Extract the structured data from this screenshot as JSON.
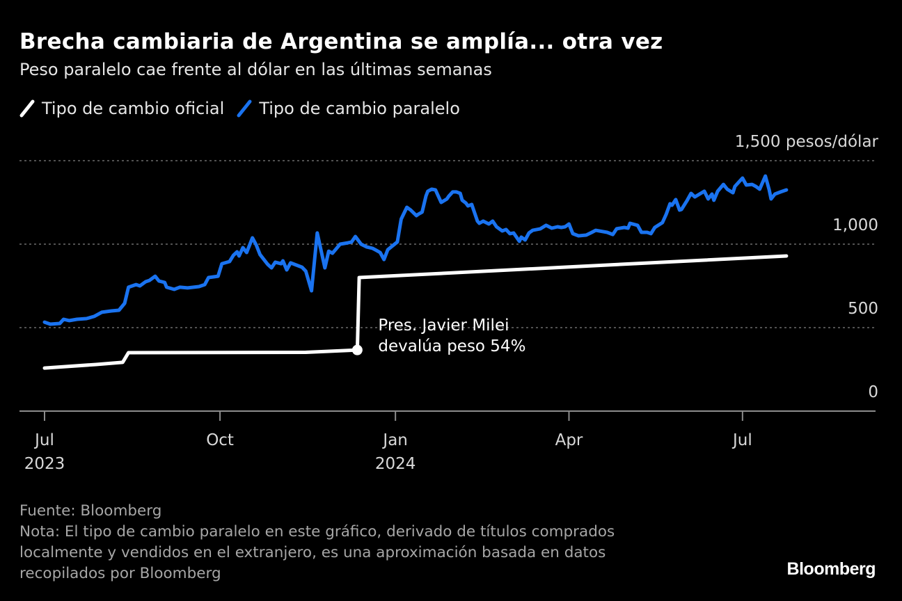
{
  "header": {
    "title": "Brecha cambiaria de Argentina se amplía... otra vez",
    "subtitle": "Peso paralelo cae frente al dólar en las últimas semanas"
  },
  "footer": {
    "source": "Fuente: Bloomberg",
    "note_lines": [
      "Nota: El tipo de cambio paralelo en este gráfico, derivado de títulos comprados",
      "localmente y vendidos en el extranjero, es una aproximación basada en datos",
      "recopilados por Bloomberg"
    ],
    "logo": "Bloomberg"
  },
  "chart_data": {
    "type": "line",
    "title": "Brecha cambiaria de Argentina se amplía... otra vez",
    "subtitle": "Peso paralelo cae frente al dólar en las últimas semanas",
    "ylabel_unit": "pesos/dólar",
    "ylim": [
      0,
      1500
    ],
    "y_ticks": [
      {
        "value": 0,
        "label": "0"
      },
      {
        "value": 500,
        "label": "500"
      },
      {
        "value": 1000,
        "label": "1,000"
      },
      {
        "value": 1500,
        "label": "1,500 pesos/dólar"
      }
    ],
    "xlim": [
      "2023-06-18",
      "2024-09-15"
    ],
    "x_ticks": [
      {
        "date": "2023-07-01",
        "label": "Jul",
        "year": "2023"
      },
      {
        "date": "2023-10-01",
        "label": "Oct",
        "year": ""
      },
      {
        "date": "2024-01-01",
        "label": "Jan",
        "year": "2024"
      },
      {
        "date": "2024-04-01",
        "label": "Apr",
        "year": ""
      },
      {
        "date": "2024-07-01",
        "label": "Jul",
        "year": ""
      }
    ],
    "grid": "horizontal dotted",
    "legend_position": "top-left",
    "series": [
      {
        "name": "Tipo de cambio oficial",
        "color": "#ffffff",
        "points": [
          [
            "2023-07-01",
            258
          ],
          [
            "2023-07-28",
            279
          ],
          [
            "2023-08-11",
            292
          ],
          [
            "2023-08-14",
            350
          ],
          [
            "2023-11-15",
            352
          ],
          [
            "2023-12-12",
            366
          ],
          [
            "2023-12-13",
            800
          ],
          [
            "2024-07-24",
            929
          ]
        ]
      },
      {
        "name": "Tipo de cambio paralelo",
        "color": "#1a73f0",
        "points": [
          [
            "2023-07-01",
            533
          ],
          [
            "2023-07-04",
            521
          ],
          [
            "2023-07-09",
            525
          ],
          [
            "2023-07-11",
            550
          ],
          [
            "2023-07-14",
            542
          ],
          [
            "2023-07-18",
            550
          ],
          [
            "2023-07-23",
            554
          ],
          [
            "2023-07-27",
            567
          ],
          [
            "2023-07-31",
            592
          ],
          [
            "2023-08-05",
            600
          ],
          [
            "2023-08-09",
            604
          ],
          [
            "2023-08-12",
            646
          ],
          [
            "2023-08-14",
            742
          ],
          [
            "2023-08-18",
            758
          ],
          [
            "2023-08-20",
            750
          ],
          [
            "2023-08-23",
            775
          ],
          [
            "2023-08-25",
            783
          ],
          [
            "2023-08-28",
            808
          ],
          [
            "2023-08-30",
            779
          ],
          [
            "2023-09-02",
            771
          ],
          [
            "2023-09-03",
            742
          ],
          [
            "2023-09-07",
            729
          ],
          [
            "2023-09-10",
            742
          ],
          [
            "2023-09-14",
            738
          ],
          [
            "2023-09-20",
            746
          ],
          [
            "2023-09-23",
            758
          ],
          [
            "2023-09-25",
            800
          ],
          [
            "2023-09-30",
            808
          ],
          [
            "2023-10-02",
            883
          ],
          [
            "2023-10-06",
            896
          ],
          [
            "2023-10-08",
            933
          ],
          [
            "2023-10-10",
            954
          ],
          [
            "2023-10-11",
            929
          ],
          [
            "2023-10-13",
            979
          ],
          [
            "2023-10-15",
            950
          ],
          [
            "2023-10-18",
            1038
          ],
          [
            "2023-10-20",
            996
          ],
          [
            "2023-10-22",
            938
          ],
          [
            "2023-10-26",
            879
          ],
          [
            "2023-10-28",
            858
          ],
          [
            "2023-10-30",
            892
          ],
          [
            "2023-11-02",
            883
          ],
          [
            "2023-11-03",
            900
          ],
          [
            "2023-11-05",
            846
          ],
          [
            "2023-11-07",
            888
          ],
          [
            "2023-11-10",
            875
          ],
          [
            "2023-11-13",
            862
          ],
          [
            "2023-11-15",
            838
          ],
          [
            "2023-11-18",
            721
          ],
          [
            "2023-11-21",
            1067
          ],
          [
            "2023-11-25",
            858
          ],
          [
            "2023-11-27",
            958
          ],
          [
            "2023-11-29",
            946
          ],
          [
            "2023-12-03",
            1000
          ],
          [
            "2023-12-07",
            1008
          ],
          [
            "2023-12-09",
            1013
          ],
          [
            "2023-12-11",
            1046
          ],
          [
            "2023-12-14",
            1000
          ],
          [
            "2023-12-17",
            983
          ],
          [
            "2023-12-20",
            975
          ],
          [
            "2023-12-22",
            963
          ],
          [
            "2023-12-24",
            950
          ],
          [
            "2023-12-26",
            908
          ],
          [
            "2023-12-28",
            967
          ],
          [
            "2024-01-01",
            1004
          ],
          [
            "2024-01-02",
            1013
          ],
          [
            "2024-01-04",
            1150
          ],
          [
            "2024-01-07",
            1221
          ],
          [
            "2024-01-09",
            1204
          ],
          [
            "2024-01-12",
            1171
          ],
          [
            "2024-01-13",
            1179
          ],
          [
            "2024-01-15",
            1192
          ],
          [
            "2024-01-17",
            1288
          ],
          [
            "2024-01-18",
            1317
          ],
          [
            "2024-01-20",
            1329
          ],
          [
            "2024-01-22",
            1325
          ],
          [
            "2024-01-23",
            1300
          ],
          [
            "2024-01-25",
            1250
          ],
          [
            "2024-01-28",
            1271
          ],
          [
            "2024-01-29",
            1288
          ],
          [
            "2024-01-31",
            1313
          ],
          [
            "2024-02-02",
            1313
          ],
          [
            "2024-02-04",
            1304
          ],
          [
            "2024-02-05",
            1263
          ],
          [
            "2024-02-07",
            1246
          ],
          [
            "2024-02-08",
            1229
          ],
          [
            "2024-02-10",
            1238
          ],
          [
            "2024-02-13",
            1138
          ],
          [
            "2024-02-14",
            1125
          ],
          [
            "2024-02-16",
            1138
          ],
          [
            "2024-02-19",
            1121
          ],
          [
            "2024-02-21",
            1138
          ],
          [
            "2024-02-23",
            1104
          ],
          [
            "2024-02-26",
            1079
          ],
          [
            "2024-02-28",
            1088
          ],
          [
            "2024-03-01",
            1063
          ],
          [
            "2024-03-03",
            1067
          ],
          [
            "2024-03-06",
            1017
          ],
          [
            "2024-03-07",
            1042
          ],
          [
            "2024-03-09",
            1025
          ],
          [
            "2024-03-11",
            1067
          ],
          [
            "2024-03-13",
            1083
          ],
          [
            "2024-03-17",
            1092
          ],
          [
            "2024-03-20",
            1113
          ],
          [
            "2024-03-23",
            1096
          ],
          [
            "2024-03-26",
            1104
          ],
          [
            "2024-03-28",
            1100
          ],
          [
            "2024-03-30",
            1104
          ],
          [
            "2024-04-01",
            1121
          ],
          [
            "2024-04-03",
            1063
          ],
          [
            "2024-04-06",
            1050
          ],
          [
            "2024-04-10",
            1054
          ],
          [
            "2024-04-13",
            1071
          ],
          [
            "2024-04-15",
            1083
          ],
          [
            "2024-04-21",
            1071
          ],
          [
            "2024-04-24",
            1058
          ],
          [
            "2024-04-26",
            1092
          ],
          [
            "2024-04-30",
            1100
          ],
          [
            "2024-05-02",
            1096
          ],
          [
            "2024-05-03",
            1125
          ],
          [
            "2024-05-07",
            1113
          ],
          [
            "2024-05-09",
            1071
          ],
          [
            "2024-05-12",
            1071
          ],
          [
            "2024-05-14",
            1063
          ],
          [
            "2024-05-16",
            1100
          ],
          [
            "2024-05-20",
            1129
          ],
          [
            "2024-05-22",
            1179
          ],
          [
            "2024-05-24",
            1242
          ],
          [
            "2024-05-25",
            1233
          ],
          [
            "2024-05-27",
            1267
          ],
          [
            "2024-05-29",
            1204
          ],
          [
            "2024-05-30",
            1208
          ],
          [
            "2024-06-02",
            1263
          ],
          [
            "2024-06-04",
            1304
          ],
          [
            "2024-06-06",
            1283
          ],
          [
            "2024-06-11",
            1317
          ],
          [
            "2024-06-13",
            1271
          ],
          [
            "2024-06-15",
            1300
          ],
          [
            "2024-06-16",
            1263
          ],
          [
            "2024-06-18",
            1317
          ],
          [
            "2024-06-21",
            1358
          ],
          [
            "2024-06-23",
            1329
          ],
          [
            "2024-06-26",
            1308
          ],
          [
            "2024-06-27",
            1346
          ],
          [
            "2024-07-01",
            1396
          ],
          [
            "2024-07-03",
            1354
          ],
          [
            "2024-07-06",
            1358
          ],
          [
            "2024-07-08",
            1346
          ],
          [
            "2024-07-10",
            1329
          ],
          [
            "2024-07-13",
            1408
          ],
          [
            "2024-07-15",
            1325
          ],
          [
            "2024-07-16",
            1271
          ],
          [
            "2024-07-18",
            1300
          ],
          [
            "2024-07-21",
            1313
          ],
          [
            "2024-07-24",
            1325
          ]
        ]
      }
    ],
    "annotations": [
      {
        "date": "2023-12-12",
        "value": 366,
        "lines": [
          "Pres. Javier Milei",
          "devalúa peso 54%"
        ]
      }
    ]
  }
}
